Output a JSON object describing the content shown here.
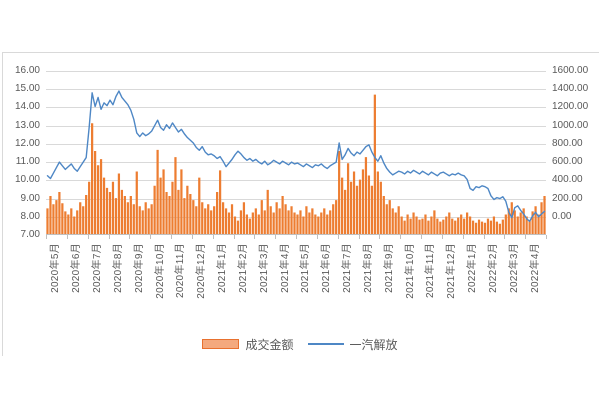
{
  "legend": {
    "bar_series_label": "成交金额",
    "line_series_label": "一汽解放"
  },
  "colors": {
    "bar_fill": "#ED7D31",
    "legend_bar_fill": "#F4A97E",
    "legend_bar_border": "#E8712F",
    "line": "#4E87C5",
    "grid": "#D9D9D9",
    "axis_line": "#BFBFBF",
    "axis_text": "#595959",
    "frame_border": "#D9D9D9"
  },
  "chart_data": {
    "type": "bar",
    "subtype": "combo-bar-line",
    "title": "",
    "xlabel": "",
    "ylabel_left": "",
    "ylabel_right": "",
    "grid": true,
    "legend_position": "bottom",
    "points_per_month": 7,
    "categories": [
      "2020年5月",
      "2020年6月",
      "2020年7月",
      "2020年8月",
      "2020年9月",
      "2020年10月",
      "2020年11月",
      "2020年12月",
      "2021年1月",
      "2021年2月",
      "2021年3月",
      "2021年4月",
      "2021年5月",
      "2021年6月",
      "2021年7月",
      "2021年8月",
      "2021年9月",
      "2021年10月",
      "2021年11月",
      "2021年12月",
      "2022年1月",
      "2022年2月",
      "2022年3月",
      "2022年4月"
    ],
    "left_axis": {
      "min": 7,
      "max": 16,
      "step": 1,
      "labels": [
        "16.00",
        "15.00",
        "14.00",
        "13.00",
        "12.00",
        "11.00",
        "10.00",
        "9.00",
        "8.00",
        "7.00"
      ],
      "series": "一汽解放"
    },
    "right_axis": {
      "min": 0,
      "max": 1600,
      "step": 200,
      "labels": [
        "1600.00",
        "1400.00",
        "1200.00",
        "1000.00",
        "800.00",
        "600.00",
        "400.00",
        "200.00",
        "0.00"
      ],
      "series": "成交金额"
    },
    "series": [
      {
        "name": "成交金额",
        "type": "bar",
        "axis": "right",
        "values": [
          260,
          380,
          300,
          340,
          420,
          310,
          230,
          200,
          260,
          180,
          240,
          320,
          280,
          390,
          520,
          1090,
          820,
          680,
          740,
          560,
          460,
          420,
          520,
          360,
          600,
          440,
          380,
          320,
          380,
          300,
          620,
          280,
          240,
          320,
          260,
          300,
          480,
          830,
          560,
          640,
          420,
          380,
          520,
          760,
          440,
          640,
          360,
          480,
          400,
          340,
          280,
          560,
          320,
          260,
          300,
          240,
          280,
          420,
          630,
          320,
          260,
          220,
          300,
          180,
          140,
          240,
          320,
          200,
          160,
          220,
          260,
          200,
          340,
          240,
          440,
          280,
          220,
          320,
          260,
          380,
          300,
          240,
          280,
          220,
          200,
          240,
          180,
          280,
          220,
          260,
          200,
          180,
          220,
          260,
          200,
          240,
          300,
          340,
          820,
          560,
          440,
          700,
          520,
          620,
          480,
          540,
          640,
          760,
          580,
          480,
          1370,
          620,
          520,
          380,
          300,
          340,
          260,
          220,
          280,
          180,
          140,
          200,
          160,
          220,
          180,
          150,
          160,
          200,
          140,
          180,
          240,
          160,
          130,
          150,
          180,
          220,
          160,
          140,
          170,
          200,
          160,
          220,
          180,
          140,
          120,
          150,
          130,
          120,
          160,
          140,
          180,
          130,
          110,
          150,
          200,
          260,
          320,
          240,
          180,
          220,
          260,
          180,
          140,
          230,
          280,
          200,
          320,
          380
        ]
      },
      {
        "name": "一汽解放",
        "type": "line",
        "axis": "left",
        "values": [
          10.25,
          10.1,
          10.4,
          10.7,
          11.0,
          10.8,
          10.6,
          10.75,
          10.9,
          10.65,
          10.5,
          10.75,
          11.0,
          11.25,
          12.9,
          14.8,
          14.05,
          14.55,
          13.9,
          14.25,
          14.1,
          14.4,
          14.15,
          14.6,
          14.9,
          14.55,
          14.35,
          14.15,
          13.85,
          13.35,
          12.6,
          12.4,
          12.6,
          12.45,
          12.55,
          12.7,
          13.0,
          13.3,
          12.9,
          12.75,
          13.05,
          12.85,
          13.15,
          12.9,
          12.65,
          12.8,
          12.55,
          12.35,
          12.2,
          12.05,
          11.8,
          11.65,
          11.85,
          11.55,
          11.4,
          11.45,
          11.35,
          11.2,
          11.3,
          11.05,
          10.75,
          10.95,
          11.15,
          11.4,
          11.6,
          11.45,
          11.25,
          11.1,
          11.2,
          11.05,
          11.15,
          11.0,
          10.9,
          11.05,
          10.85,
          10.95,
          11.1,
          11.0,
          10.9,
          11.05,
          10.95,
          10.85,
          11.0,
          10.9,
          10.95,
          10.85,
          10.75,
          10.9,
          10.8,
          10.7,
          10.85,
          10.8,
          10.9,
          10.75,
          10.65,
          10.8,
          10.9,
          11.0,
          12.05,
          11.15,
          11.4,
          11.75,
          11.5,
          11.35,
          11.55,
          11.45,
          11.65,
          11.85,
          11.95,
          11.55,
          11.25,
          11.05,
          11.35,
          10.95,
          10.65,
          10.45,
          10.3,
          10.4,
          10.5,
          10.45,
          10.35,
          10.5,
          10.4,
          10.55,
          10.45,
          10.35,
          10.5,
          10.4,
          10.3,
          10.45,
          10.35,
          10.25,
          10.4,
          10.45,
          10.35,
          10.25,
          10.35,
          10.3,
          10.4,
          10.3,
          10.25,
          10.05,
          9.55,
          9.45,
          9.65,
          9.6,
          9.7,
          9.65,
          9.55,
          9.15,
          8.95,
          9.05,
          9.0,
          9.1,
          8.85,
          8.25,
          7.95,
          8.5,
          8.6,
          8.35,
          8.15,
          7.9,
          7.75,
          8.05,
          8.25,
          8.0,
          8.15,
          8.3
        ]
      }
    ]
  }
}
